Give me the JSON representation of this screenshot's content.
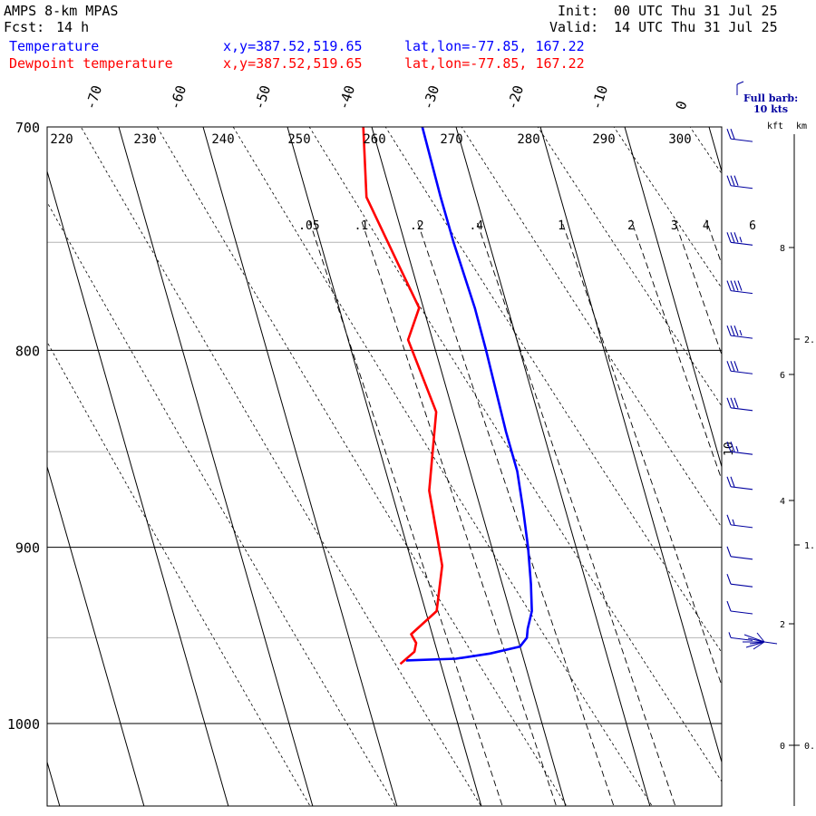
{
  "header": {
    "model": "AMPS 8-km MPAS",
    "fcst_label": "Fcst:",
    "fcst_value": "14 h",
    "init_label": "Init:",
    "init_value": "00 UTC Thu 31 Jul 25",
    "valid_label": "Valid:",
    "valid_value": "14 UTC Thu 31 Jul 25",
    "temp_label": "Temperature",
    "dew_label": "Dewpoint temperature",
    "xy_text": "x,y=387.52,519.65",
    "latlon_text": "lat,lon=-77.85, 167.22",
    "barb_note_1": "Full barb:",
    "barb_note_2": "10 kts",
    "kft_label": "kft",
    "km_label": "km"
  },
  "colors": {
    "temperature": "#0000ff",
    "dewpoint": "#ff0000",
    "barbs": "#0000a0",
    "isobar_minor": "#b4b4b4"
  },
  "chart_data": {
    "type": "line",
    "title": "",
    "y_axis": {
      "quantity": "pressure",
      "units": "hPa",
      "scale": "log",
      "range": [
        1045,
        700
      ],
      "tick_labels": [
        "700",
        "800",
        "900",
        "1000"
      ]
    },
    "top_temperature_labels": [
      "-70",
      "-60",
      "-50",
      "-40",
      "-30",
      "-20",
      "-10",
      "0"
    ],
    "dry_adiabat_labels": [
      "220",
      "230",
      "240",
      "250",
      "260",
      "270",
      "280",
      "290",
      "300"
    ],
    "mixing_ratio_labels": [
      ".05",
      ".1",
      ".2",
      ".4",
      "1",
      "2",
      "3",
      "4",
      "6"
    ],
    "height_kft_labels": [
      "8",
      "6",
      "4",
      "2",
      "0"
    ],
    "height_km_labels": [
      "2.",
      "1.",
      "0."
    ],
    "moist_adiabat_label": "10",
    "series": [
      {
        "name": "Temperature",
        "x_units": "degC",
        "points": [
          [
            700,
            -34.0
          ],
          [
            730,
            -34.2
          ],
          [
            750,
            -34.2
          ],
          [
            780,
            -33.9
          ],
          [
            800,
            -34.0
          ],
          [
            840,
            -34.4
          ],
          [
            860,
            -34.4
          ],
          [
            880,
            -35.0
          ],
          [
            900,
            -35.7
          ],
          [
            920,
            -36.6
          ],
          [
            935,
            -37.4
          ],
          [
            945,
            -38.5
          ],
          [
            950,
            -38.9
          ],
          [
            955,
            -40.0
          ],
          [
            959,
            -43.8
          ],
          [
            962,
            -48.0
          ],
          [
            963,
            -54.0
          ]
        ]
      },
      {
        "name": "Dewpoint temperature",
        "x_units": "degC",
        "points": [
          [
            700,
            -41.0
          ],
          [
            730,
            -43.0
          ],
          [
            760,
            -41.5
          ],
          [
            780,
            -40.5
          ],
          [
            795,
            -42.9
          ],
          [
            830,
            -42.0
          ],
          [
            870,
            -45.5
          ],
          [
            890,
            -46.0
          ],
          [
            910,
            -46.5
          ],
          [
            935,
            -48.7
          ],
          [
            948,
            -52.5
          ],
          [
            953,
            -52.2
          ],
          [
            958,
            -52.7
          ],
          [
            965,
            -54.8
          ]
        ]
      }
    ],
    "wind_barbs": [
      {
        "p": 705,
        "speed_kt": 20
      },
      {
        "p": 725,
        "speed_kt": 30
      },
      {
        "p": 750,
        "speed_kt": 35
      },
      {
        "p": 772,
        "speed_kt": 40
      },
      {
        "p": 793,
        "speed_kt": 35
      },
      {
        "p": 810,
        "speed_kt": 30
      },
      {
        "p": 828,
        "speed_kt": 30
      },
      {
        "p": 850,
        "speed_kt": 25
      },
      {
        "p": 868,
        "speed_kt": 20
      },
      {
        "p": 888,
        "speed_kt": 15
      },
      {
        "p": 905,
        "speed_kt": 10
      },
      {
        "p": 920,
        "speed_kt": 10
      },
      {
        "p": 935,
        "speed_kt": 10
      },
      {
        "p": 950,
        "speed_kt": 5
      }
    ]
  }
}
